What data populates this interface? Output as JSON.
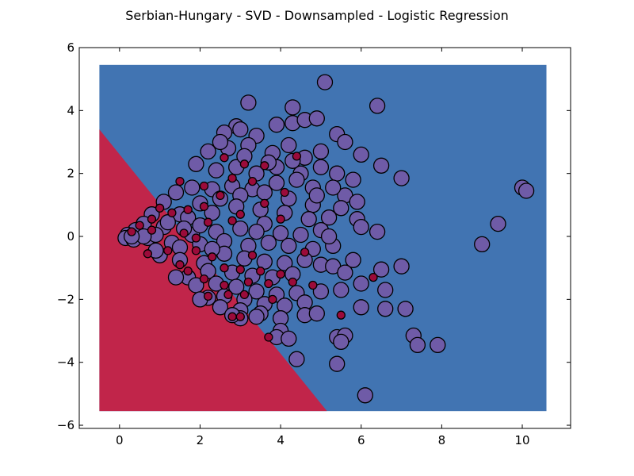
{
  "chart_data": {
    "type": "scatter",
    "title": "Serbian-Hungary - SVD - Downsampled - Logistic Regression",
    "xlabel": "",
    "ylabel": "",
    "xlim": [
      -1,
      11.2
    ],
    "ylim": [
      -6.1,
      6
    ],
    "xticks": [
      0,
      2,
      4,
      6,
      8,
      10
    ],
    "yticks": [
      -6,
      -4,
      -2,
      0,
      2,
      4,
      6
    ],
    "grid": false,
    "legend": "none",
    "colors": {
      "region_blue": "#4174b2",
      "region_red": "#c1254a",
      "class_purple": "#6f5ba7",
      "class_red": "#9b0b3a",
      "marker_edge": "#000000"
    },
    "decision_region": {
      "extent": {
        "x": [
          -0.5,
          10.6
        ],
        "y": [
          -5.55,
          5.45
        ]
      },
      "boundary": [
        [
          -0.5,
          3.4
        ],
        [
          5.15,
          -5.55
        ]
      ],
      "left_class": "red",
      "right_class": "blue"
    },
    "series": [
      {
        "class": "purple",
        "marker_size": "large",
        "points": [
          [
            5.1,
            4.9
          ],
          [
            3.2,
            4.25
          ],
          [
            6.4,
            4.15
          ],
          [
            4.3,
            4.1
          ],
          [
            3.9,
            3.55
          ],
          [
            4.3,
            3.6
          ],
          [
            4.6,
            3.7
          ],
          [
            4.9,
            3.75
          ],
          [
            2.9,
            3.5
          ],
          [
            3.0,
            3.4
          ],
          [
            2.6,
            3.3
          ],
          [
            3.4,
            3.2
          ],
          [
            5.4,
            3.25
          ],
          [
            5.6,
            3.0
          ],
          [
            6.0,
            2.6
          ],
          [
            6.5,
            2.25
          ],
          [
            7.0,
            1.85
          ],
          [
            5.0,
            2.7
          ],
          [
            4.6,
            2.5
          ],
          [
            4.2,
            2.9
          ],
          [
            3.8,
            2.65
          ],
          [
            3.2,
            2.9
          ],
          [
            2.7,
            2.8
          ],
          [
            2.5,
            3.0
          ],
          [
            2.2,
            2.7
          ],
          [
            1.9,
            2.3
          ],
          [
            2.4,
            2.1
          ],
          [
            2.9,
            2.2
          ],
          [
            3.4,
            2.0
          ],
          [
            3.9,
            2.2
          ],
          [
            4.5,
            2.0
          ],
          [
            5.0,
            2.2
          ],
          [
            5.4,
            2.0
          ],
          [
            5.8,
            1.8
          ],
          [
            5.6,
            1.3
          ],
          [
            5.9,
            1.1
          ],
          [
            5.5,
            0.9
          ],
          [
            5.9,
            0.55
          ],
          [
            6.0,
            0.3
          ],
          [
            6.4,
            0.15
          ],
          [
            5.3,
            1.55
          ],
          [
            4.8,
            1.55
          ],
          [
            4.4,
            1.8
          ],
          [
            3.9,
            1.7
          ],
          [
            3.3,
            1.5
          ],
          [
            2.8,
            1.6
          ],
          [
            2.3,
            1.5
          ],
          [
            1.8,
            1.55
          ],
          [
            1.4,
            1.4
          ],
          [
            1.1,
            1.1
          ],
          [
            0.8,
            0.7
          ],
          [
            0.6,
            0.4
          ],
          [
            0.4,
            0.2
          ],
          [
            0.2,
            0.05
          ],
          [
            0.15,
            -0.05
          ],
          [
            0.35,
            -0.1
          ],
          [
            0.7,
            -0.05
          ],
          [
            1.1,
            0.3
          ],
          [
            1.5,
            0.7
          ],
          [
            2.0,
            1.05
          ],
          [
            2.5,
            1.2
          ],
          [
            3.0,
            1.3
          ],
          [
            3.6,
            1.4
          ],
          [
            4.2,
            1.2
          ],
          [
            4.8,
            1.0
          ],
          [
            5.2,
            0.6
          ],
          [
            4.7,
            0.55
          ],
          [
            4.1,
            0.75
          ],
          [
            3.5,
            0.85
          ],
          [
            2.9,
            0.95
          ],
          [
            2.3,
            0.75
          ],
          [
            1.7,
            0.6
          ],
          [
            1.2,
            0.45
          ],
          [
            0.9,
            0.05
          ],
          [
            1.3,
            -0.2
          ],
          [
            1.8,
            0.05
          ],
          [
            2.4,
            0.15
          ],
          [
            3.0,
            0.25
          ],
          [
            3.6,
            0.4
          ],
          [
            4.0,
            0.1
          ],
          [
            4.5,
            0.05
          ],
          [
            5.0,
            0.2
          ],
          [
            4.8,
            -0.4
          ],
          [
            4.2,
            -0.3
          ],
          [
            3.7,
            -0.2
          ],
          [
            3.2,
            -0.3
          ],
          [
            2.6,
            -0.15
          ],
          [
            2.0,
            -0.25
          ],
          [
            1.5,
            -0.35
          ],
          [
            1.0,
            -0.6
          ],
          [
            0.9,
            -0.45
          ],
          [
            1.5,
            -0.75
          ],
          [
            2.1,
            -0.85
          ],
          [
            2.6,
            -0.55
          ],
          [
            3.1,
            -0.7
          ],
          [
            3.6,
            -0.8
          ],
          [
            4.1,
            -0.85
          ],
          [
            4.6,
            -0.75
          ],
          [
            5.0,
            -0.9
          ],
          [
            5.3,
            -0.95
          ],
          [
            5.8,
            -0.75
          ],
          [
            6.5,
            -1.05
          ],
          [
            7.0,
            -0.95
          ],
          [
            5.6,
            -1.15
          ],
          [
            4.3,
            -1.2
          ],
          [
            3.8,
            -1.3
          ],
          [
            3.3,
            -1.25
          ],
          [
            2.8,
            -1.15
          ],
          [
            2.2,
            -1.1
          ],
          [
            1.7,
            -1.3
          ],
          [
            1.4,
            -1.3
          ],
          [
            1.9,
            -1.55
          ],
          [
            2.4,
            -1.5
          ],
          [
            2.9,
            -1.6
          ],
          [
            3.4,
            -1.75
          ],
          [
            3.9,
            -1.85
          ],
          [
            4.4,
            -1.8
          ],
          [
            5.0,
            -1.75
          ],
          [
            5.5,
            -1.7
          ],
          [
            6.0,
            -1.5
          ],
          [
            6.6,
            -1.7
          ],
          [
            4.6,
            -2.1
          ],
          [
            4.1,
            -2.2
          ],
          [
            3.6,
            -2.15
          ],
          [
            3.1,
            -2.0
          ],
          [
            2.6,
            -1.9
          ],
          [
            2.2,
            -1.95
          ],
          [
            2.0,
            -2.0
          ],
          [
            2.5,
            -2.25
          ],
          [
            3.0,
            -2.35
          ],
          [
            3.5,
            -2.45
          ],
          [
            4.0,
            -2.6
          ],
          [
            4.6,
            -2.5
          ],
          [
            4.9,
            -2.45
          ],
          [
            6.0,
            -2.25
          ],
          [
            6.6,
            -2.3
          ],
          [
            7.1,
            -2.3
          ],
          [
            3.4,
            -2.55
          ],
          [
            3.0,
            -2.6
          ],
          [
            2.8,
            -2.5
          ],
          [
            4.0,
            -3.0
          ],
          [
            3.9,
            -3.2
          ],
          [
            4.2,
            -3.25
          ],
          [
            5.4,
            -3.2
          ],
          [
            5.6,
            -3.15
          ],
          [
            5.5,
            -3.35
          ],
          [
            7.3,
            -3.15
          ],
          [
            7.4,
            -3.45
          ],
          [
            7.9,
            -3.45
          ],
          [
            4.4,
            -3.9
          ],
          [
            5.4,
            -4.05
          ],
          [
            6.1,
            -5.05
          ],
          [
            9.0,
            -0.25
          ],
          [
            9.4,
            0.4
          ],
          [
            10.0,
            1.55
          ],
          [
            10.1,
            1.45
          ],
          [
            4.3,
            2.4
          ],
          [
            3.7,
            2.35
          ],
          [
            3.1,
            2.55
          ],
          [
            4.9,
            1.3
          ],
          [
            2.0,
            0.35
          ],
          [
            1.6,
            0.25
          ],
          [
            0.6,
            0.0
          ],
          [
            0.3,
            0.0
          ],
          [
            5.3,
            -0.3
          ],
          [
            5.2,
            0.0
          ],
          [
            2.3,
            -0.4
          ],
          [
            3.4,
            0.15
          ]
        ]
      },
      {
        "class": "red",
        "marker_size": "small",
        "points": [
          [
            1.0,
            0.9
          ],
          [
            1.3,
            0.75
          ],
          [
            1.7,
            0.85
          ],
          [
            2.1,
            0.95
          ],
          [
            2.5,
            1.3
          ],
          [
            2.8,
            1.85
          ],
          [
            2.6,
            2.5
          ],
          [
            3.1,
            2.3
          ],
          [
            3.6,
            2.25
          ],
          [
            4.1,
            1.4
          ],
          [
            0.8,
            0.55
          ],
          [
            0.5,
            0.35
          ],
          [
            0.8,
            0.2
          ],
          [
            1.6,
            0.1
          ],
          [
            1.9,
            -0.05
          ],
          [
            2.2,
            0.45
          ],
          [
            2.8,
            0.5
          ],
          [
            3.0,
            0.7
          ],
          [
            3.6,
            1.05
          ],
          [
            4.0,
            0.55
          ],
          [
            0.7,
            -0.55
          ],
          [
            1.2,
            -0.45
          ],
          [
            1.9,
            -0.45
          ],
          [
            2.3,
            -0.65
          ],
          [
            2.6,
            -1.0
          ],
          [
            3.0,
            -1.05
          ],
          [
            3.5,
            -1.1
          ],
          [
            4.0,
            -1.2
          ],
          [
            1.5,
            -0.9
          ],
          [
            1.7,
            -1.1
          ],
          [
            2.1,
            -1.35
          ],
          [
            2.6,
            -1.55
          ],
          [
            3.2,
            -1.45
          ],
          [
            3.7,
            -1.5
          ],
          [
            4.3,
            -1.45
          ],
          [
            4.8,
            -1.55
          ],
          [
            2.2,
            -1.9
          ],
          [
            2.7,
            -1.85
          ],
          [
            3.1,
            -1.85
          ],
          [
            3.8,
            -2.0
          ],
          [
            2.8,
            -2.55
          ],
          [
            3.0,
            -2.55
          ],
          [
            3.3,
            -0.6
          ],
          [
            4.6,
            -0.5
          ],
          [
            5.5,
            -2.5
          ],
          [
            6.3,
            -1.3
          ],
          [
            3.7,
            -3.2
          ],
          [
            0.3,
            0.15
          ],
          [
            2.1,
            1.6
          ],
          [
            1.5,
            1.75
          ],
          [
            4.4,
            2.55
          ],
          [
            3.3,
            1.75
          ]
        ]
      }
    ]
  }
}
